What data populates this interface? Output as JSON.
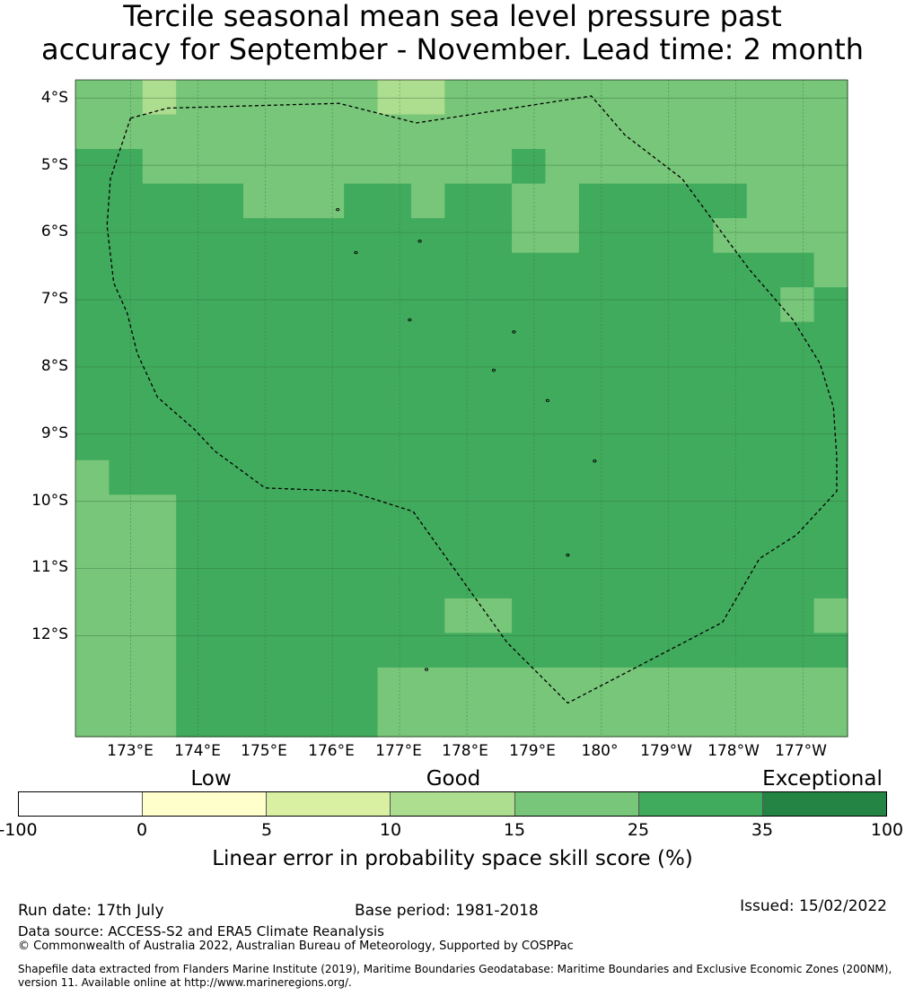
{
  "title_line1": "Tercile seasonal mean sea level pressure past",
  "title_line2": "accuracy for September - November. Lead time: 2 month",
  "lat_labels": [
    "4°S",
    "5°S",
    "6°S",
    "7°S",
    "8°S",
    "9°S",
    "10°S",
    "11°S",
    "12°S"
  ],
  "lon_labels": [
    "173°E",
    "174°E",
    "175°E",
    "176°E",
    "177°E",
    "178°E",
    "179°E",
    "180°",
    "179°W",
    "178°W",
    "177°W"
  ],
  "categories": [
    "Low",
    "Good",
    "Exceptional"
  ],
  "colorbar": {
    "ticks": [
      "-100",
      "0",
      "5",
      "10",
      "15",
      "25",
      "35",
      "100"
    ],
    "colors": [
      "#ffffff",
      "#ffffcc",
      "#d9f0a3",
      "#addd8e",
      "#78c679",
      "#41ab5d",
      "#238443"
    ],
    "label": "Linear error in probability space skill score (%)"
  },
  "map_data": {
    "grid_colors": {
      "A": "#78c679",
      "B": "#41ab5d",
      "C": "#addd8e"
    },
    "grid": [
      "AACAAAAAACCAAAAAAAAAAAA",
      "AAAAAAAAAAAAAAAAAAAAAAA",
      "BBAAAAAAAAAAABAAAAAAAAA",
      "BBBBBAAABBABBAABBBBBAAA",
      "BBBBBBBBBBBBBAABBBBAAAA",
      "BBBBBBBBBBBBBBBBBBBBBBA",
      "BBBBBBBBBBBBBBBBBBBBBAB",
      "BBBBBBBBBBBBBBBBBBBBBBB",
      "BBBBBBBBBBBBBBBBBBBBBBB",
      "BBBBBBBBBBBBBBBBBBBBBBB",
      "BBBBBBBBBBBBBBBBBBBBBBB",
      "ABBBBBBBBBBBBBBBBBBBBBB",
      "AAABBBBBBBBBBBBBBBBBBBB",
      "AAABBBBBBBBBBBBBBBBBBBB",
      "AAABBBBBBBBBBBBBBBBBBBB",
      "AAABBBBBBBBAABBBBBBBBBA",
      "AAABBBBBBBBBBBBBBBBBBBB",
      "AAABBBBBBAAAAAAAAAAAAAA",
      "AAABBBBBBAAAAAAAAAAAAAA"
    ],
    "eez_boundary_lonlat": [
      [
        173.0,
        -4.3
      ],
      [
        173.55,
        -4.15
      ],
      [
        176.1,
        -4.08
      ],
      [
        177.25,
        -4.37
      ],
      [
        179.85,
        -3.97
      ],
      [
        180.35,
        -4.55
      ],
      [
        181.2,
        -5.2
      ],
      [
        181.9,
        -6.15
      ],
      [
        182.2,
        -6.55
      ],
      [
        182.85,
        -7.3
      ],
      [
        183.25,
        -7.95
      ],
      [
        183.45,
        -8.6
      ],
      [
        183.5,
        -9.35
      ],
      [
        183.5,
        -9.85
      ],
      [
        182.9,
        -10.5
      ],
      [
        182.35,
        -10.85
      ],
      [
        181.8,
        -11.8
      ],
      [
        179.5,
        -13.0
      ],
      [
        178.6,
        -12.1
      ],
      [
        177.2,
        -10.15
      ],
      [
        176.25,
        -9.85
      ],
      [
        175.0,
        -9.8
      ],
      [
        174.25,
        -9.25
      ],
      [
        173.95,
        -8.93
      ],
      [
        173.4,
        -8.45
      ],
      [
        173.1,
        -7.8
      ],
      [
        172.95,
        -7.2
      ],
      [
        172.75,
        -6.75
      ],
      [
        172.65,
        -5.9
      ],
      [
        172.7,
        -5.2
      ],
      [
        173.0,
        -4.3
      ]
    ],
    "islands_lonlat": [
      [
        176.08,
        -5.66
      ],
      [
        177.3,
        -6.13
      ],
      [
        176.35,
        -6.3
      ],
      [
        177.15,
        -7.3
      ],
      [
        178.7,
        -7.48
      ],
      [
        178.4,
        -8.05
      ],
      [
        179.2,
        -8.5
      ],
      [
        179.9,
        -9.4
      ],
      [
        179.5,
        -10.8
      ],
      [
        177.4,
        -12.5
      ]
    ]
  },
  "footer": {
    "run_date": "Run date: 17th July",
    "base_period": "Base period: 1981-2018",
    "issued": "Issued: 15/02/2022",
    "data_source": "Data source: ACCESS-S2 and ERA5 Climate Reanalysis",
    "copyright": "© Commonwealth of Australia 2022, Australian Bureau of Meteorology, Supported by COSPPac",
    "shapefile1": "Shapefile data extracted from Flanders Marine Institute (2019), Maritime Boundaries Geodatabase: Maritime Boundaries and Exclusive Economic Zones (200NM),",
    "shapefile2": "version 11. Available online at http://www.marineregions.org/."
  }
}
